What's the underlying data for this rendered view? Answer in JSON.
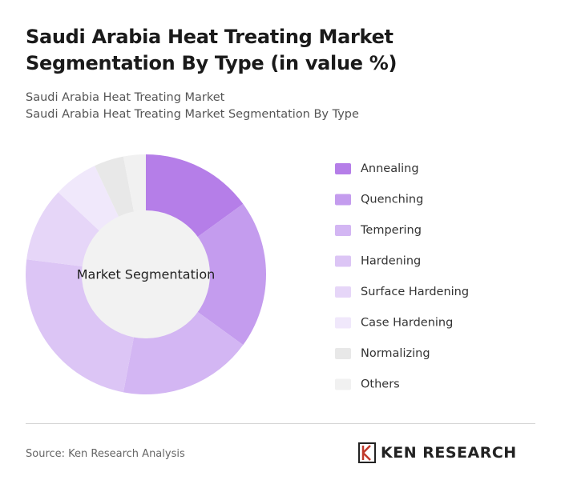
{
  "chart_data": {
    "type": "donut",
    "title": "Saudi Arabia Heat Treating Market Segmentation By Type (in value %)",
    "subtitle": "Saudi Arabia Heat Treating Market",
    "subtitle2": "Saudi Arabia Heat Treating Market Segmentation By Type",
    "center_label": "Market Segmentation",
    "categories": [
      "Annealing",
      "Quenching",
      "Tempering",
      "Hardening",
      "Surface Hardening",
      "Case Hardening",
      "Normalizing",
      "Others"
    ],
    "values": [
      15,
      20,
      18,
      24,
      10,
      6,
      4,
      3
    ],
    "colors": [
      "#b57ee8",
      "#c49cee",
      "#d3b6f3",
      "#dcc5f5",
      "#e6d6f8",
      "#f0e8fb",
      "#e8e8e8",
      "#f1f1f1"
    ],
    "legend": "right"
  },
  "source": "Source: Ken Research Analysis",
  "brand": "KEN RESEARCH"
}
